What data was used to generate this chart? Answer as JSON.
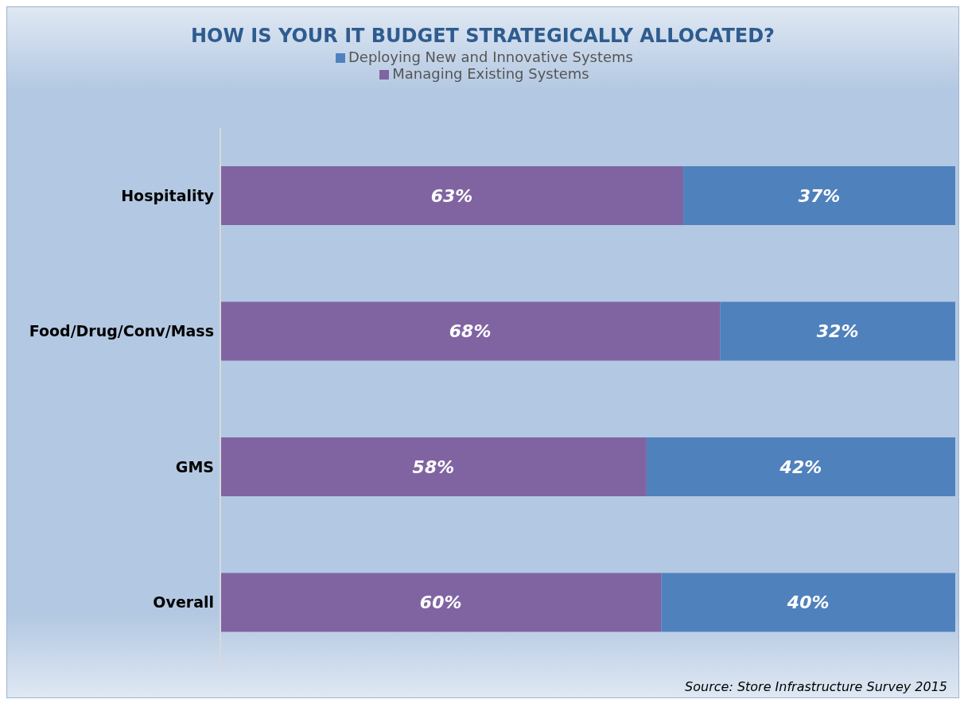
{
  "chart_data": {
    "type": "bar",
    "orientation": "horizontal",
    "stacked": true,
    "title": "HOW IS YOUR IT BUDGET STRATEGICALLY ALLOCATED?",
    "categories": [
      "Hospitality",
      "Food/Drug/Conv/Mass",
      "GMS",
      "Overall"
    ],
    "series": [
      {
        "name": "Managing Existing Systems",
        "color": "#8064a2",
        "values": [
          63,
          68,
          58,
          60
        ],
        "value_labels": [
          "63%",
          "68%",
          "58%",
          "60%"
        ]
      },
      {
        "name": "Deploying New and Innovative Systems",
        "color": "#4f81bd",
        "values": [
          37,
          32,
          42,
          40
        ],
        "value_labels": [
          "37%",
          "32%",
          "42%",
          "40%"
        ]
      }
    ],
    "xlim": [
      0,
      100
    ],
    "legend": "top",
    "grid": false,
    "tick_labels": "y",
    "annotations": [
      "Source: Store Infrastructure Survey 2015"
    ]
  }
}
